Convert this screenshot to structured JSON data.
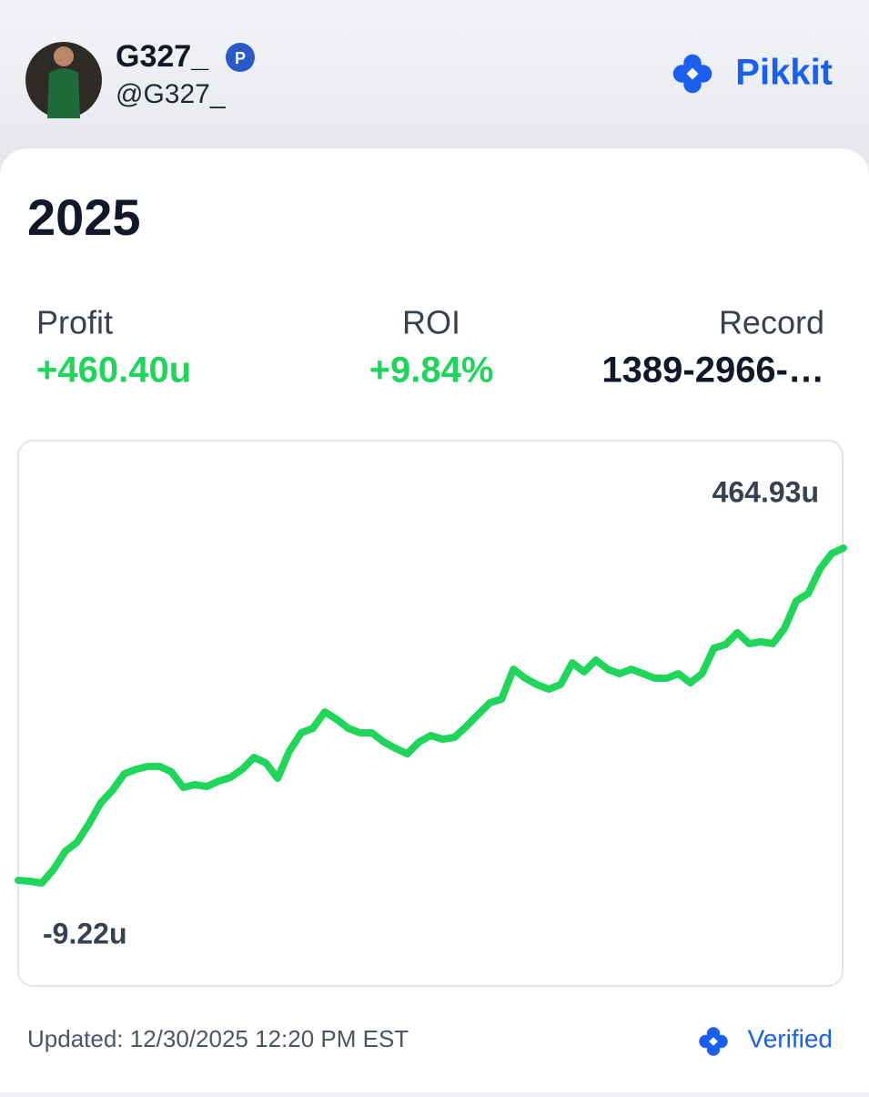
{
  "header": {
    "name": "G327_",
    "badge": "P",
    "handle": "@G327_",
    "brand": "Pikkit"
  },
  "card": {
    "title": "2025",
    "stats": [
      {
        "label": "Profit",
        "value": "+460.40u"
      },
      {
        "label": "ROI",
        "value": "+9.84%"
      },
      {
        "label": "Record",
        "value": "1389-2966-…"
      }
    ]
  },
  "chart_data": {
    "type": "line",
    "color": "#1fd65a",
    "ylim": [
      -9.22,
      464.93
    ],
    "yticks": [
      {
        "value": -9.22,
        "label": "-9.22u"
      },
      {
        "value": 464.93,
        "label": "464.93u"
      }
    ],
    "values": [
      -5.4,
      -6.7,
      -9.22,
      10.1,
      35.8,
      48.7,
      74.5,
      104.2,
      122.2,
      145.4,
      151.8,
      155.8,
      155.8,
      148.1,
      126.1,
      130.0,
      127.4,
      135.1,
      140.2,
      151.8,
      168.6,
      160.9,
      139.0,
      177.6,
      203.4,
      209.8,
      233.0,
      222.7,
      209.8,
      203.4,
      203.4,
      190.5,
      181.5,
      173.7,
      190.5,
      199.5,
      194.4,
      196.9,
      212.4,
      229.2,
      245.9,
      251.0,
      293.5,
      280.7,
      271.7,
      265.2,
      271.7,
      302.6,
      289.7,
      306.5,
      293.5,
      287.1,
      293.5,
      287.1,
      280.7,
      280.7,
      287.1,
      274.2,
      287.1,
      323.2,
      328.3,
      345.1,
      329.6,
      332.2,
      329.6,
      351.5,
      390.2,
      400.5,
      435.3,
      457.2,
      464.93
    ]
  },
  "footer": {
    "updated": "Updated: 12/30/2025 12:20 PM EST",
    "verified": "Verified"
  }
}
